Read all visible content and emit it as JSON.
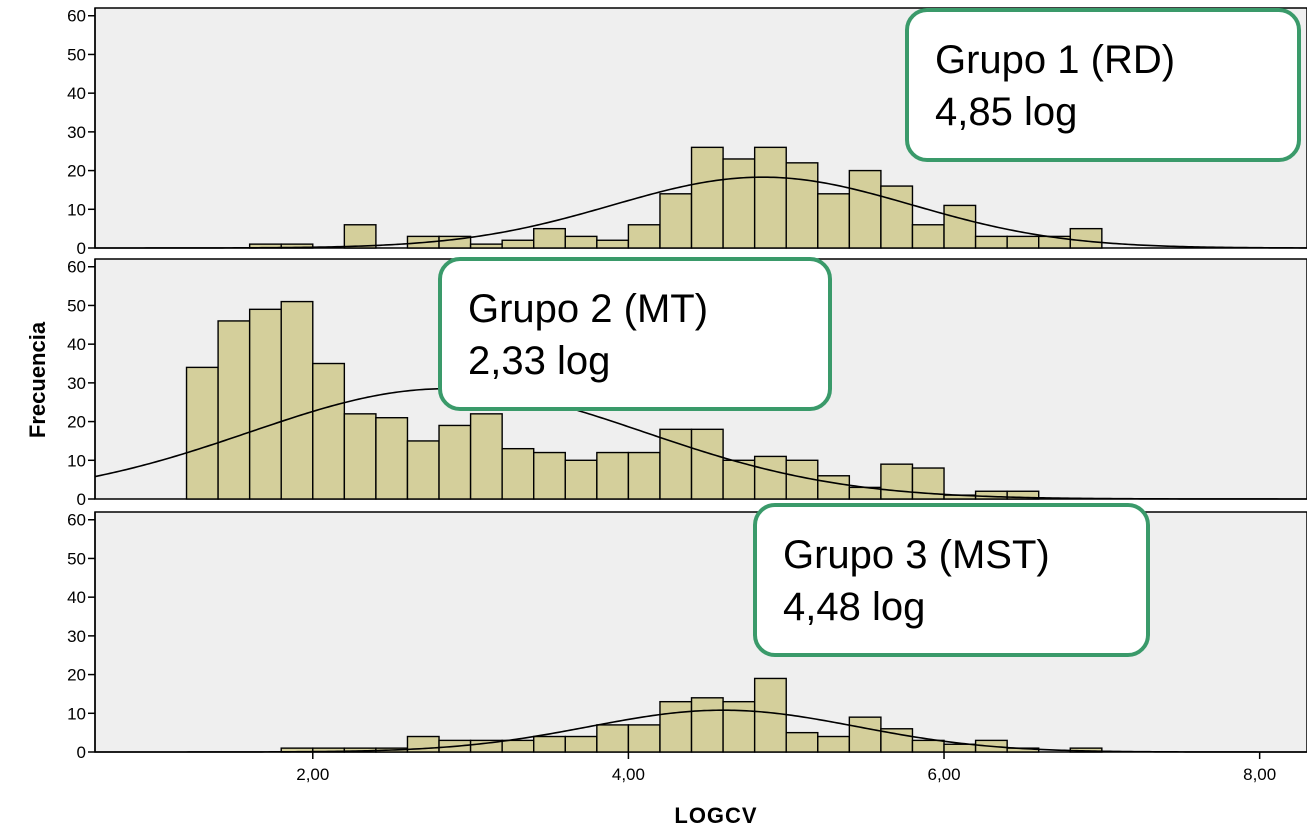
{
  "chart_data": {
    "type": "bar",
    "xlabel": "LOGCV",
    "ylabel": "Frecuencia",
    "xlim": [
      0.62,
      8.3
    ],
    "ylim": [
      0,
      62
    ],
    "x_ticks": [
      2,
      4,
      6,
      8
    ],
    "x_tick_labels": [
      "2,00",
      "4,00",
      "6,00",
      "8,00"
    ],
    "y_ticks": [
      0,
      10,
      20,
      30,
      40,
      50,
      60
    ],
    "y_tick_labels": [
      "0",
      "10",
      "20",
      "30",
      "40",
      "50",
      "60"
    ],
    "bin_width": 0.2,
    "bar_color": "#d4cf9b",
    "panel_background": "#efefef",
    "callout_border_color": "#3a9a6a",
    "panels": [
      {
        "callout": [
          "Grupo 1 (RD)",
          "4,85 log"
        ],
        "bins": [
          {
            "x": 1.7,
            "count": 1
          },
          {
            "x": 1.9,
            "count": 1
          },
          {
            "x": 2.3,
            "count": 6
          },
          {
            "x": 2.7,
            "count": 3
          },
          {
            "x": 2.9,
            "count": 3
          },
          {
            "x": 3.1,
            "count": 1
          },
          {
            "x": 3.3,
            "count": 2
          },
          {
            "x": 3.5,
            "count": 5
          },
          {
            "x": 3.7,
            "count": 3
          },
          {
            "x": 3.9,
            "count": 2
          },
          {
            "x": 4.1,
            "count": 6
          },
          {
            "x": 4.3,
            "count": 14
          },
          {
            "x": 4.5,
            "count": 26
          },
          {
            "x": 4.7,
            "count": 23
          },
          {
            "x": 4.9,
            "count": 26
          },
          {
            "x": 5.1,
            "count": 22
          },
          {
            "x": 5.3,
            "count": 14
          },
          {
            "x": 5.5,
            "count": 20
          },
          {
            "x": 5.7,
            "count": 16
          },
          {
            "x": 5.9,
            "count": 6
          },
          {
            "x": 6.1,
            "count": 11
          },
          {
            "x": 6.3,
            "count": 3
          },
          {
            "x": 6.5,
            "count": 3
          },
          {
            "x": 6.7,
            "count": 3
          },
          {
            "x": 6.9,
            "count": 5
          }
        ],
        "normal_curve": {
          "mean": 4.85,
          "sd": 0.95,
          "peak": 18.3
        }
      },
      {
        "callout": [
          "Grupo 2 (MT)",
          "2,33 log"
        ],
        "bins": [
          {
            "x": 1.3,
            "count": 34
          },
          {
            "x": 1.5,
            "count": 46
          },
          {
            "x": 1.7,
            "count": 49
          },
          {
            "x": 1.9,
            "count": 51
          },
          {
            "x": 2.1,
            "count": 35
          },
          {
            "x": 2.3,
            "count": 22
          },
          {
            "x": 2.5,
            "count": 21
          },
          {
            "x": 2.7,
            "count": 15
          },
          {
            "x": 2.9,
            "count": 19
          },
          {
            "x": 3.1,
            "count": 22
          },
          {
            "x": 3.3,
            "count": 13
          },
          {
            "x": 3.5,
            "count": 12
          },
          {
            "x": 3.7,
            "count": 10
          },
          {
            "x": 3.9,
            "count": 12
          },
          {
            "x": 4.1,
            "count": 12
          },
          {
            "x": 4.3,
            "count": 18
          },
          {
            "x": 4.5,
            "count": 18
          },
          {
            "x": 4.7,
            "count": 10
          },
          {
            "x": 4.9,
            "count": 11
          },
          {
            "x": 5.1,
            "count": 10
          },
          {
            "x": 5.3,
            "count": 6
          },
          {
            "x": 5.5,
            "count": 3
          },
          {
            "x": 5.7,
            "count": 9
          },
          {
            "x": 5.9,
            "count": 8
          },
          {
            "x": 6.1,
            "count": 1
          },
          {
            "x": 6.3,
            "count": 2
          },
          {
            "x": 6.5,
            "count": 2
          }
        ],
        "normal_curve": {
          "mean": 2.85,
          "sd": 1.25,
          "peak": 28.5
        }
      },
      {
        "callout": [
          "Grupo 3 (MST)",
          "4,48 log"
        ],
        "bins": [
          {
            "x": 1.9,
            "count": 1
          },
          {
            "x": 2.1,
            "count": 1
          },
          {
            "x": 2.3,
            "count": 1
          },
          {
            "x": 2.5,
            "count": 1
          },
          {
            "x": 2.7,
            "count": 4
          },
          {
            "x": 2.9,
            "count": 3
          },
          {
            "x": 3.1,
            "count": 3
          },
          {
            "x": 3.3,
            "count": 3
          },
          {
            "x": 3.5,
            "count": 4
          },
          {
            "x": 3.7,
            "count": 4
          },
          {
            "x": 3.9,
            "count": 7
          },
          {
            "x": 4.1,
            "count": 7
          },
          {
            "x": 4.3,
            "count": 13
          },
          {
            "x": 4.5,
            "count": 14
          },
          {
            "x": 4.7,
            "count": 13
          },
          {
            "x": 4.9,
            "count": 19
          },
          {
            "x": 5.1,
            "count": 5
          },
          {
            "x": 5.3,
            "count": 4
          },
          {
            "x": 5.5,
            "count": 9
          },
          {
            "x": 5.7,
            "count": 6
          },
          {
            "x": 5.9,
            "count": 3
          },
          {
            "x": 6.1,
            "count": 2
          },
          {
            "x": 6.3,
            "count": 3
          },
          {
            "x": 6.5,
            "count": 1
          },
          {
            "x": 6.9,
            "count": 1
          }
        ],
        "normal_curve": {
          "mean": 4.6,
          "sd": 0.85,
          "peak": 10.8
        }
      }
    ]
  }
}
